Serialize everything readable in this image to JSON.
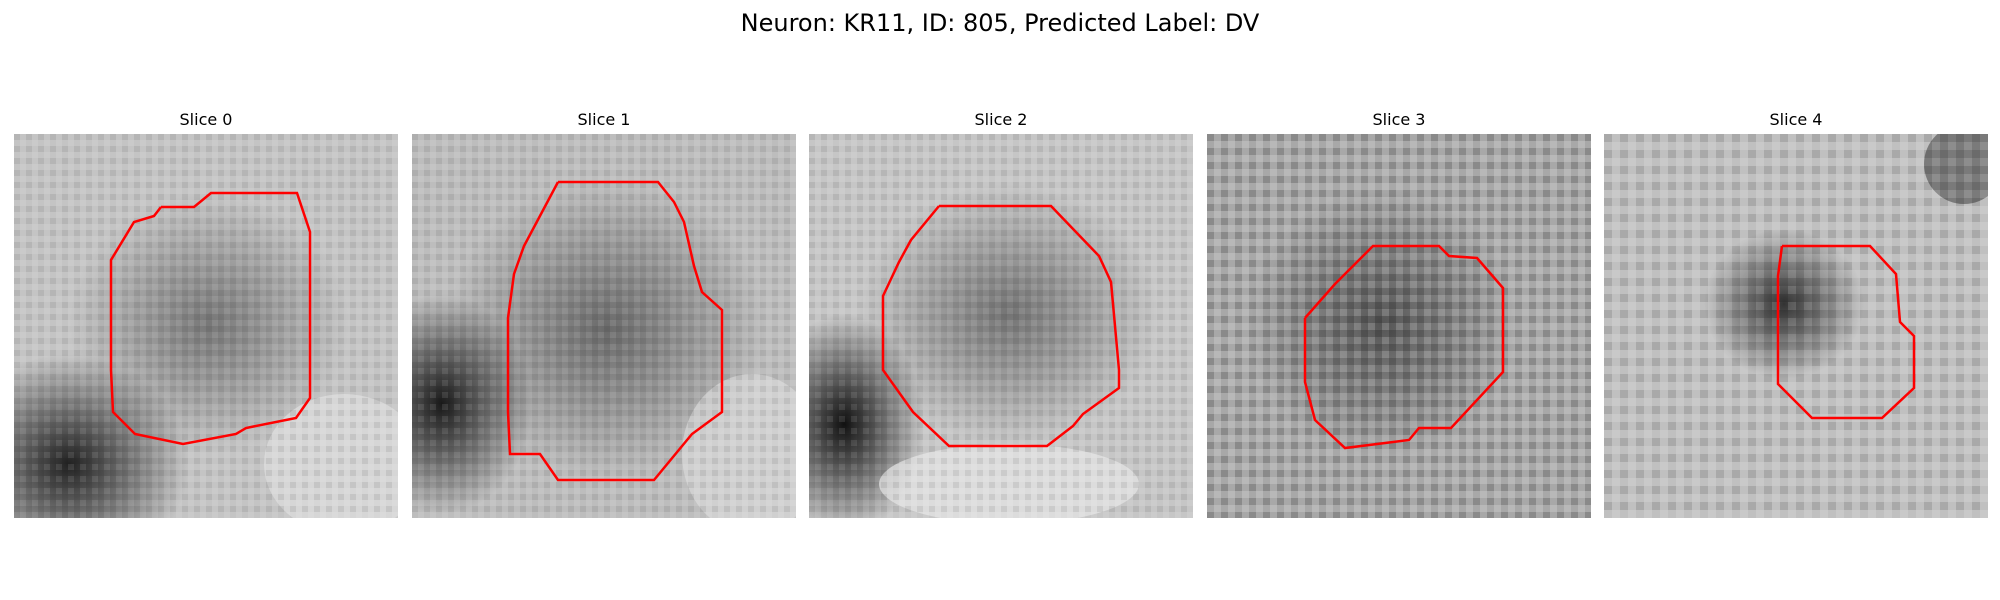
{
  "figure": {
    "title": "Neuron: KR11, ID: 805, Predicted Label: DV"
  },
  "contour_color": "#ff0000",
  "panels": [
    {
      "title": "Slice 0"
    },
    {
      "title": "Slice 1"
    },
    {
      "title": "Slice 2"
    },
    {
      "title": "Slice 3"
    },
    {
      "title": "Slice 4"
    }
  ]
}
